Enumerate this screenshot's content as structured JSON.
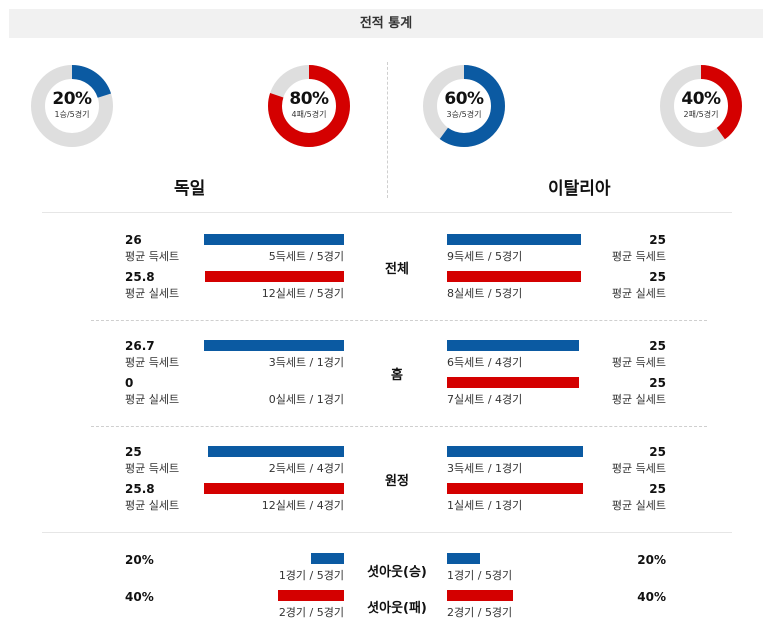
{
  "header": {
    "title": "전적 통계"
  },
  "colors": {
    "blue": "#0b5aa2",
    "red": "#d40000",
    "track": "#dedede"
  },
  "donuts": [
    {
      "pct_value": 20,
      "pct": "20%",
      "sub": "1승/5경기",
      "color": "blue"
    },
    {
      "pct_value": 80,
      "pct": "80%",
      "sub": "4패/5경기",
      "color": "red"
    },
    {
      "pct_value": 60,
      "pct": "60%",
      "sub": "3승/5경기",
      "color": "blue"
    },
    {
      "pct_value": 40,
      "pct": "40%",
      "sub": "2패/5경기",
      "color": "red"
    }
  ],
  "teams": {
    "left": "독일",
    "right": "이탈리아"
  },
  "sections": [
    {
      "category": "전체",
      "left": {
        "win_val": "26",
        "win_label": "평균 득세트",
        "win_count": "5득세트 / 5경기",
        "lose_val": "25.8",
        "lose_label": "평균 실세트",
        "lose_count": "12실세트 / 5경기",
        "win_fill": 1.0,
        "lose_fill": 0.99
      },
      "right": {
        "win_val": "25",
        "win_label": "평균 득세트",
        "win_count": "9득세트 / 5경기",
        "lose_val": "25",
        "lose_label": "평균 실세트",
        "lose_count": "8실세트 / 5경기",
        "win_fill": 0.96,
        "lose_fill": 0.96
      }
    },
    {
      "category": "홈",
      "left": {
        "win_val": "26.7",
        "win_label": "평균 득세트",
        "win_count": "3득세트 / 1경기",
        "lose_val": "0",
        "lose_label": "평균 실세트",
        "lose_count": "0실세트 / 1경기",
        "win_fill": 1.0,
        "lose_fill": 0.0
      },
      "right": {
        "win_val": "25",
        "win_label": "평균 득세트",
        "win_count": "6득세트 / 4경기",
        "lose_val": "25",
        "lose_label": "평균 실세트",
        "lose_count": "7실세트 / 4경기",
        "win_fill": 0.94,
        "lose_fill": 0.94
      }
    },
    {
      "category": "원정",
      "left": {
        "win_val": "25",
        "win_label": "평균 득세트",
        "win_count": "2득세트 / 4경기",
        "lose_val": "25.8",
        "lose_label": "평균 실세트",
        "lose_count": "12실세트 / 4경기",
        "win_fill": 0.97,
        "lose_fill": 1.0
      },
      "right": {
        "win_val": "25",
        "win_label": "평균 득세트",
        "win_count": "3득세트 / 1경기",
        "lose_val": "25",
        "lose_label": "평균 실세트",
        "lose_count": "1실세트 / 1경기",
        "win_fill": 0.97,
        "lose_fill": 0.97
      }
    }
  ],
  "set_out": {
    "win": {
      "category": "셧아웃(승)",
      "left_val": "20%",
      "left_count": "1경기 / 5경기",
      "right_val": "20%",
      "right_count": "1경기 / 5경기",
      "left_fill": 0.2,
      "right_fill": 0.2
    },
    "lose": {
      "category": "셧아웃(패)",
      "left_val": "40%",
      "left_count": "2경기 / 5경기",
      "right_val": "40%",
      "right_count": "2경기 / 5경기",
      "left_fill": 0.4,
      "right_fill": 0.4
    }
  }
}
